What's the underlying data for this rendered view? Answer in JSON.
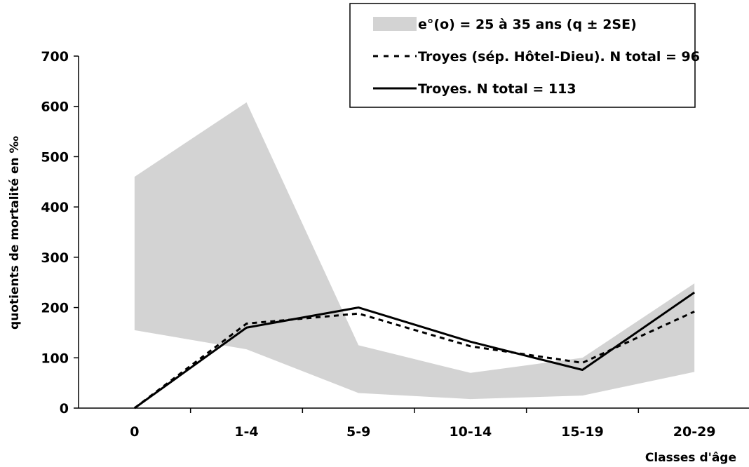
{
  "chart_data": {
    "type": "line",
    "title": "",
    "xlabel": "Classes d'âge",
    "ylabel": "quotients de mortalité en ‰",
    "categories": [
      "0",
      "1-4",
      "5-9",
      "10-14",
      "15-19",
      "20-29"
    ],
    "ylim": [
      0,
      700
    ],
    "yticks": [
      0,
      100,
      200,
      300,
      400,
      500,
      600,
      700
    ],
    "grid": false,
    "legend_position": "top-right",
    "band": {
      "name": "e°(o) = 25 à 35 ans (q ± 2SE)",
      "lower": [
        155,
        117,
        30,
        18,
        25,
        72
      ],
      "upper": [
        460,
        608,
        125,
        70,
        100,
        248
      ],
      "color": "#d3d3d3"
    },
    "series": [
      {
        "name": "Troyes (sép. Hôtel-Dieu). N total = 96",
        "values": [
          0,
          168,
          188,
          123,
          90,
          192
        ],
        "style": "dashed",
        "color": "#000000"
      },
      {
        "name": "Troyes. N total = 113",
        "values": [
          0,
          160,
          200,
          132,
          76,
          230
        ],
        "style": "solid",
        "color": "#000000"
      }
    ]
  }
}
